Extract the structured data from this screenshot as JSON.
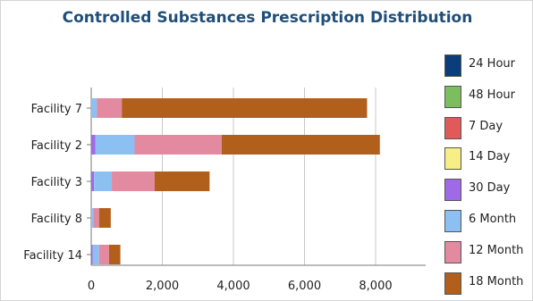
{
  "chart_data": {
    "type": "bar",
    "orientation": "horizontal",
    "stacked": true,
    "title": "Controlled Substances Prescription Distribution",
    "categories": [
      "Facility 7",
      "Facility 2",
      "Facility 3",
      "Facility 8",
      "Facility 14"
    ],
    "series": [
      {
        "name": "24 Hour",
        "color": "#0a3d7a",
        "values": [
          0,
          0,
          0,
          0,
          0
        ]
      },
      {
        "name": "48 Hour",
        "color": "#7cbd5e",
        "values": [
          0,
          0,
          0,
          0,
          0
        ]
      },
      {
        "name": "7 Day",
        "color": "#e05a5a",
        "values": [
          0,
          0,
          0,
          0,
          0
        ]
      },
      {
        "name": "14 Day",
        "color": "#f7ef86",
        "values": [
          0,
          0,
          0,
          0,
          0
        ]
      },
      {
        "name": "30 Day",
        "color": "#9e6ae8",
        "values": [
          0,
          120,
          80,
          0,
          40
        ]
      },
      {
        "name": "6 Month",
        "color": "#8cc0f2",
        "values": [
          160,
          1100,
          500,
          60,
          180
        ]
      },
      {
        "name": "12 Month",
        "color": "#e38aa0",
        "values": [
          700,
          2450,
          1200,
          160,
          280
        ]
      },
      {
        "name": "18 Month",
        "color": "#b35f1c",
        "values": [
          6900,
          4450,
          1550,
          330,
          320
        ]
      }
    ],
    "xlim": [
      0,
      9000
    ],
    "xticks": [
      0,
      2000,
      4000,
      6000,
      8000
    ],
    "xtick_labels": [
      "0",
      "2,000",
      "4,000",
      "6,000",
      "8,000"
    ],
    "grid": true,
    "legend_position": "right"
  }
}
